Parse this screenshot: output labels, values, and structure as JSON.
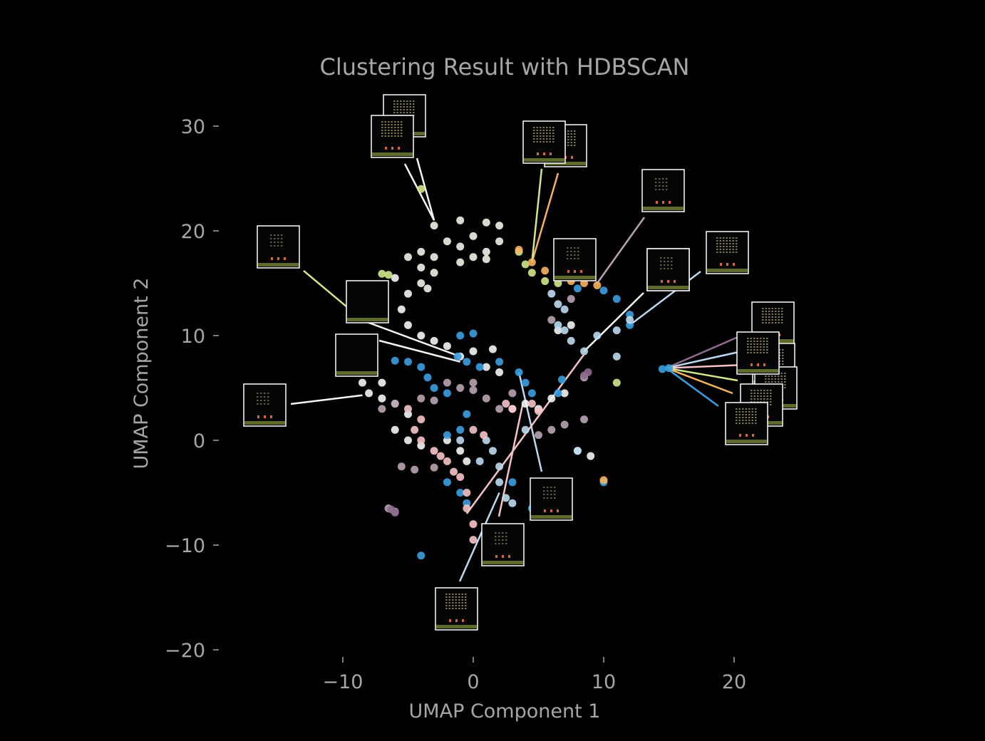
{
  "chart_data": {
    "type": "scatter",
    "title": "Clustering Result with HDBSCAN",
    "xlabel": "UMAP Component 1",
    "ylabel": "UMAP Component 2",
    "xlim": [
      -19,
      25
    ],
    "ylim": [
      -21,
      33
    ],
    "xticks": [
      -10,
      0,
      10,
      20
    ],
    "xtick_labels": [
      "−10",
      "0",
      "10",
      "20"
    ],
    "yticks": [
      -20,
      -10,
      0,
      10,
      20,
      30
    ],
    "ytick_labels": [
      "−20",
      "−10",
      "0",
      "10",
      "20",
      "30"
    ],
    "grid": false,
    "legend": "none",
    "colors": {
      "background": "#000000",
      "text": "#a6a6a6",
      "white": "#f4f4f4",
      "cream": "#eef2e4",
      "blue": "#3a9ee0",
      "lightblue": "#bcd9f0",
      "pink": "#f6c3c8",
      "mauve": "#b9a3b3",
      "green": "#cfe88c",
      "orange": "#f6b25e",
      "purple": "#8c6c8c"
    },
    "clusters": [
      {
        "color": "#eef2e4",
        "points": [
          [
            -3,
            20.5
          ],
          [
            -1,
            21
          ],
          [
            1,
            20.8
          ],
          [
            2,
            20.5
          ],
          [
            -2,
            19
          ],
          [
            0,
            19.5
          ],
          [
            2,
            19
          ],
          [
            -4,
            18
          ],
          [
            -3,
            17.5
          ],
          [
            -1,
            18.5
          ],
          [
            1,
            18
          ],
          [
            -5,
            17.5
          ],
          [
            -4,
            16.5
          ],
          [
            -3,
            16
          ],
          [
            -4,
            15
          ],
          [
            -3.5,
            14.5
          ],
          [
            -1,
            17
          ],
          [
            0,
            17.5
          ],
          [
            1,
            17.3
          ]
        ]
      },
      {
        "color": "#f4f4f4",
        "points": [
          [
            -6,
            15.5
          ],
          [
            -5,
            14
          ],
          [
            -5.5,
            12.5
          ],
          [
            -5,
            11
          ],
          [
            -4,
            10
          ],
          [
            -3,
            9.5
          ],
          [
            -2,
            9
          ],
          [
            -1,
            8
          ],
          [
            0,
            8.5
          ],
          [
            1.5,
            8.7
          ],
          [
            1,
            7
          ],
          [
            2,
            6.5
          ],
          [
            -7,
            5.5
          ],
          [
            -8,
            4.5
          ],
          [
            -8.5,
            5.5
          ],
          [
            -7,
            4
          ],
          [
            -6,
            3.5
          ],
          [
            -5,
            2.5
          ],
          [
            -6,
            1
          ],
          [
            -5,
            0
          ],
          [
            -4,
            -0.5
          ],
          [
            -2,
            0
          ],
          [
            5,
            3
          ],
          [
            6,
            4
          ],
          [
            7,
            4.5
          ],
          [
            4,
            3.5
          ],
          [
            8,
            -1
          ],
          [
            9,
            -1.5
          ],
          [
            -1,
            -1
          ],
          [
            -0.5,
            -2
          ],
          [
            6.5,
            10.5
          ],
          [
            7.5,
            11
          ],
          [
            3,
            3
          ]
        ]
      },
      {
        "color": "#3a9ee0",
        "points": [
          [
            -1,
            10
          ],
          [
            0,
            10.2
          ],
          [
            -1.2,
            8
          ],
          [
            -0.5,
            7.5
          ],
          [
            0.5,
            7
          ],
          [
            2,
            7.5
          ],
          [
            -5,
            7.5
          ],
          [
            -4,
            7
          ],
          [
            -3.5,
            6
          ],
          [
            -3,
            5
          ],
          [
            -2,
            4.5
          ],
          [
            -6,
            7.6
          ],
          [
            3.5,
            6.5
          ],
          [
            4,
            5.5
          ],
          [
            4.5,
            4.5
          ],
          [
            6.5,
            4.5
          ],
          [
            6.8,
            5.8
          ],
          [
            3,
            -4
          ],
          [
            4.5,
            -6.5
          ],
          [
            5,
            -6.8
          ],
          [
            -2,
            0.5
          ],
          [
            -1,
            1
          ],
          [
            -0.5,
            2.5
          ],
          [
            -1,
            -5
          ],
          [
            -0.5,
            -6
          ],
          [
            -2,
            -4
          ],
          [
            -4,
            -11
          ],
          [
            10,
            -4
          ],
          [
            14.5,
            6.8
          ],
          [
            8,
            14.5
          ],
          [
            10,
            14.3
          ],
          [
            11,
            13.5
          ],
          [
            12,
            12
          ],
          [
            12,
            11
          ],
          [
            15,
            6.9
          ]
        ]
      },
      {
        "color": "#bcd9f0",
        "points": [
          [
            6,
            14
          ],
          [
            6.5,
            13
          ],
          [
            7,
            12.5
          ],
          [
            6.5,
            11
          ],
          [
            7,
            10.5
          ],
          [
            7.5,
            9.5
          ],
          [
            8.5,
            8.5
          ],
          [
            9.5,
            10
          ],
          [
            11,
            10.5
          ],
          [
            12,
            11.5
          ],
          [
            1,
            0
          ],
          [
            1.5,
            -1
          ],
          [
            2,
            -2.5
          ],
          [
            2,
            -4
          ],
          [
            2.5,
            -5.5
          ],
          [
            3,
            -6
          ],
          [
            0.5,
            -2
          ],
          [
            -1,
            0
          ],
          [
            4,
            1
          ],
          [
            11,
            8
          ],
          [
            8,
            -1
          ]
        ]
      },
      {
        "color": "#f6c3c8",
        "points": [
          [
            -5,
            3
          ],
          [
            -4,
            2
          ],
          [
            -4.5,
            1
          ],
          [
            -4,
            0
          ],
          [
            -3,
            -1
          ],
          [
            -2,
            -2
          ],
          [
            -1,
            -3.5
          ],
          [
            -0.5,
            -5
          ],
          [
            -0.5,
            -6.5
          ],
          [
            0,
            -8
          ],
          [
            0,
            -9.5
          ],
          [
            -1.5,
            -3
          ],
          [
            -2.5,
            -1.5
          ],
          [
            0,
            1
          ],
          [
            0.8,
            0.5
          ],
          [
            2.5,
            3.5
          ],
          [
            3,
            3
          ],
          [
            4.5,
            3.5
          ],
          [
            5,
            2.8
          ]
        ]
      },
      {
        "color": "#b9a3b3",
        "points": [
          [
            -7,
            3
          ],
          [
            -6,
            3.5
          ],
          [
            -4,
            4
          ],
          [
            -3,
            3.8
          ],
          [
            -2,
            5.5
          ],
          [
            -1,
            5
          ],
          [
            0,
            5.5
          ],
          [
            1,
            4
          ],
          [
            2,
            3
          ],
          [
            3,
            4.5
          ],
          [
            -5.5,
            -2.5
          ],
          [
            -4.5,
            -2.8
          ],
          [
            -3,
            -2.6
          ],
          [
            5,
            0.5
          ],
          [
            6,
            1
          ],
          [
            7,
            1.5
          ],
          [
            8.5,
            2
          ],
          [
            -6.5,
            -6.5
          ],
          [
            -6,
            -6.8
          ],
          [
            6,
            11.5
          ],
          [
            7.5,
            13.5
          ],
          [
            8.5,
            6
          ],
          [
            0,
            4.8
          ]
        ]
      },
      {
        "color": "#cfe88c",
        "points": [
          [
            -6.5,
            15.8
          ],
          [
            -7,
            15.9
          ],
          [
            -4,
            24
          ],
          [
            3.5,
            18
          ],
          [
            4,
            16.8
          ],
          [
            4.5,
            16
          ],
          [
            5.5,
            15.2
          ],
          [
            6.5,
            15
          ],
          [
            11,
            5.5
          ]
        ]
      },
      {
        "color": "#f6b25e",
        "points": [
          [
            3.5,
            18.2
          ],
          [
            4.5,
            17
          ],
          [
            5.5,
            16.2
          ],
          [
            6.5,
            15.8
          ],
          [
            7.5,
            15.2
          ],
          [
            8.5,
            15
          ],
          [
            9.5,
            14.8
          ],
          [
            10,
            -3.8
          ]
        ]
      },
      {
        "color": "#8c6c8c",
        "points": [
          [
            8.5,
            6.2
          ],
          [
            8.8,
            6.5
          ],
          [
            -6.3,
            -6.6
          ],
          [
            -6,
            -6.9
          ]
        ]
      }
    ],
    "annotations": [
      {
        "frame": "grid",
        "target": [
          -3,
          21
        ],
        "color": "#f4f4f4"
      },
      {
        "frame": "grid",
        "target": [
          -3,
          21
        ],
        "color": "#f4f4f4"
      },
      {
        "frame": "grid",
        "target": [
          4.5,
          17
        ],
        "color": "#f6b25e"
      },
      {
        "frame": "grid",
        "target": [
          4.5,
          17
        ],
        "color": "#cfe88c"
      },
      {
        "frame": "sparse",
        "target": [
          9.5,
          15
        ],
        "color": "#b9a3b3"
      },
      {
        "frame": "sparse",
        "target": [
          9.5,
          15
        ],
        "color": "#f4f4f4"
      },
      {
        "frame": "grid",
        "target": [
          8.5,
          8.5
        ],
        "color": "#f4f4f4"
      },
      {
        "frame": "grid",
        "target": [
          12,
          11
        ],
        "color": "#bcd9f0"
      },
      {
        "frame": "sparse",
        "target": [
          -8.5,
          11.5
        ],
        "color": "#cfe88c"
      },
      {
        "frame": "empty",
        "target": [
          -1,
          8
        ],
        "color": "#f4f4f4"
      },
      {
        "frame": "empty",
        "target": [
          -1,
          7.5
        ],
        "color": "#f4f4f4"
      },
      {
        "frame": "sparse",
        "target": [
          -8.5,
          4.3
        ],
        "color": "#f4f4f4"
      },
      {
        "frame": "grid",
        "target": [
          14.8,
          6.9
        ],
        "color": "#8c6c8c"
      },
      {
        "frame": "grid",
        "target": [
          14.8,
          6.9
        ],
        "color": "#bcd9f0"
      },
      {
        "frame": "grid",
        "target": [
          14.8,
          6.9
        ],
        "color": "#f6c3c8"
      },
      {
        "frame": "grid",
        "target": [
          14.8,
          6.9
        ],
        "color": "#cfe88c"
      },
      {
        "frame": "grid",
        "target": [
          14.8,
          6.9
        ],
        "color": "#f6b25e"
      },
      {
        "frame": "grid",
        "target": [
          14.8,
          6.9
        ],
        "color": "#3a9ee0"
      },
      {
        "frame": "sparse",
        "target": [
          3.5,
          6.5
        ],
        "color": "#bcd9f0"
      },
      {
        "frame": "sparse",
        "target": [
          3.8,
          3.5
        ],
        "color": "#f6c3c8"
      },
      {
        "frame": "grid",
        "target": [
          2,
          -5
        ],
        "color": "#bcd9f0"
      },
      {
        "frame": "sparse",
        "target": [
          -0.5,
          -7
        ],
        "color": "#f6c3c8"
      }
    ]
  }
}
